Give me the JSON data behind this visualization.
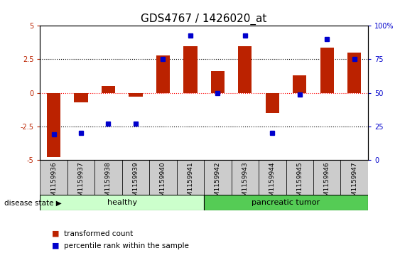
{
  "title": "GDS4767 / 1426020_at",
  "samples": [
    "GSM1159936",
    "GSM1159937",
    "GSM1159938",
    "GSM1159939",
    "GSM1159940",
    "GSM1159941",
    "GSM1159942",
    "GSM1159943",
    "GSM1159944",
    "GSM1159945",
    "GSM1159946",
    "GSM1159947"
  ],
  "transformed_count": [
    -4.8,
    -0.7,
    0.5,
    -0.3,
    2.8,
    3.5,
    1.6,
    3.5,
    -1.5,
    1.3,
    3.4,
    3.0
  ],
  "percentile_rank_pct": [
    19,
    20,
    27,
    27,
    75,
    93,
    50,
    93,
    20,
    49,
    90,
    75
  ],
  "n_healthy": 6,
  "n_tumor": 6,
  "bar_color": "#bb2200",
  "dot_color": "#0000cc",
  "healthy_color_light": "#ccffcc",
  "tumor_color": "#55cc55",
  "ylim": [
    -5,
    5
  ],
  "y2lim": [
    0,
    100
  ],
  "dotted_lines": [
    -2.5,
    0.0,
    2.5
  ],
  "bar_width": 0.5,
  "title_fontsize": 11,
  "tick_fontsize": 7,
  "label_fontsize": 8
}
